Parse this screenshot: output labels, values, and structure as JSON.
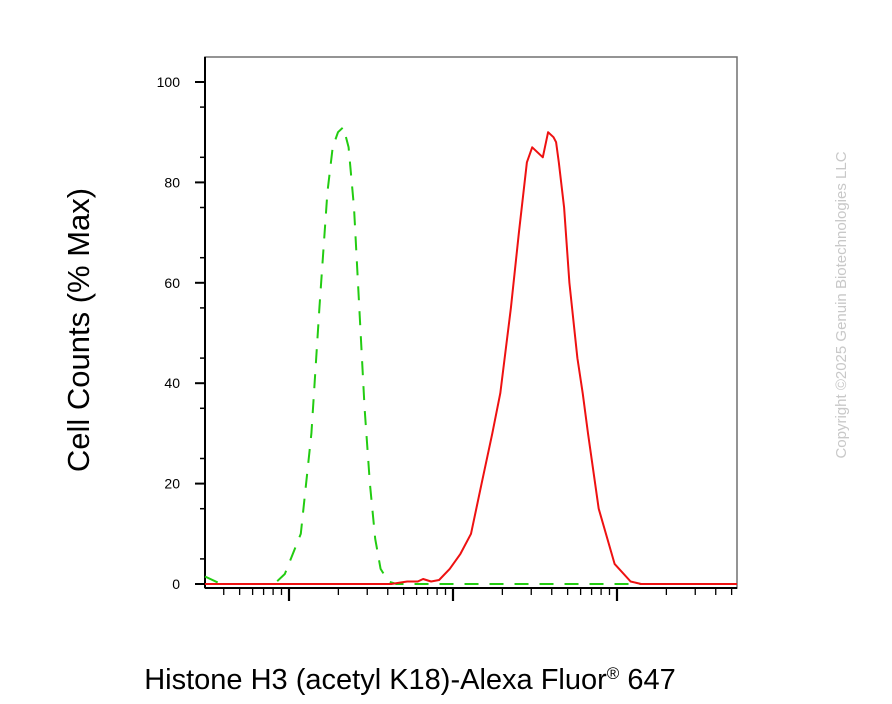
{
  "chart_data": {
    "type": "line",
    "title": "",
    "xlabel": "Histone H3 (acetyl K18)-Alexa Fluor",
    "xlabel_superscript": "®",
    "xlabel_suffix": " 647",
    "ylabel": "Cell Counts (% Max)",
    "ylim": [
      0,
      100
    ],
    "xlim": [
      0,
      1
    ],
    "x_scale": "log",
    "y_ticks": [
      0,
      20,
      40,
      60,
      80,
      100
    ],
    "y_tick_labels": [
      "0",
      "20",
      "40",
      "60",
      "80",
      "100"
    ],
    "grid": false,
    "legend": "none",
    "series": [
      {
        "color": "#22cc11",
        "dash": "dashed",
        "x": [
          0.0,
          0.03,
          0.08,
          0.13,
          0.15,
          0.18,
          0.2,
          0.215,
          0.23,
          0.24,
          0.25,
          0.26,
          0.265,
          0.27,
          0.28,
          0.29,
          0.3,
          0.31,
          0.32,
          0.33,
          0.345,
          0.36,
          0.38,
          0.42,
          0.5,
          0.7,
          1.0
        ],
        "y": [
          1.5,
          0,
          0,
          0,
          2,
          10,
          30,
          55,
          78,
          87,
          90,
          91,
          89,
          87,
          75,
          55,
          35,
          20,
          9,
          3,
          0.5,
          0,
          0,
          0,
          0,
          0,
          0
        ]
      },
      {
        "color": "#ee1111",
        "dash": "solid",
        "x": [
          0.0,
          0.35,
          0.38,
          0.4,
          0.41,
          0.425,
          0.44,
          0.46,
          0.48,
          0.5,
          0.52,
          0.54,
          0.555,
          0.575,
          0.59,
          0.605,
          0.615,
          0.625,
          0.635,
          0.645,
          0.655,
          0.66,
          0.665,
          0.675,
          0.685,
          0.7,
          0.71,
          0.72,
          0.74,
          0.77,
          0.8,
          0.82,
          0.84,
          0.86,
          0.88,
          0.9,
          0.92,
          0.96,
          1.0
        ],
        "y": [
          0,
          0,
          0.5,
          0.5,
          1,
          0.5,
          0.8,
          3,
          6,
          10,
          20,
          30,
          38,
          55,
          70,
          84,
          87,
          86,
          85,
          90,
          89,
          88,
          84,
          75,
          60,
          45,
          38,
          30,
          15,
          4,
          0.5,
          0,
          0,
          0,
          0,
          0,
          0,
          0,
          0
        ]
      }
    ]
  },
  "watermark": "Copyright ©2025 Genuin Biotechnologies LLC"
}
